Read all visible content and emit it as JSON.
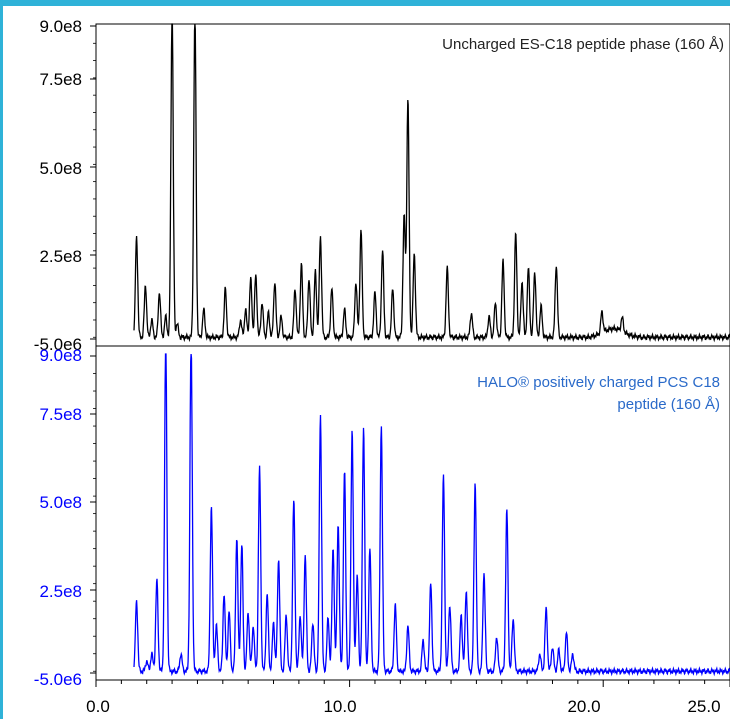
{
  "chart_data": [
    {
      "type": "line",
      "annotation_lines": [
        "Uncharged ES-C18 peptide phase (160 Å)"
      ],
      "yticks": [
        "9.0e8",
        "7.5e8",
        "5.0e8",
        "2.5e8",
        "-5.0e6"
      ],
      "ytick_values": [
        900000000,
        750000000,
        500000000,
        250000000,
        -5000000
      ],
      "ylim": [
        -5000000,
        900000000
      ],
      "xlim": [
        0,
        25
      ],
      "color": "#000000",
      "peaks": [
        [
          1.6,
          290000000.0
        ],
        [
          1.95,
          150000000.0
        ],
        [
          2.2,
          50000000.0
        ],
        [
          2.5,
          130000000.0
        ],
        [
          2.75,
          60000000.0
        ],
        [
          3.0,
          950000000.0
        ],
        [
          3.2,
          40000000.0
        ],
        [
          3.9,
          950000000.0
        ],
        [
          4.25,
          80000000.0
        ],
        [
          5.1,
          140000000.0
        ],
        [
          5.7,
          50000000.0
        ],
        [
          5.9,
          80000000.0
        ],
        [
          6.1,
          170000000.0
        ],
        [
          6.3,
          180000000.0
        ],
        [
          6.55,
          100000000.0
        ],
        [
          6.8,
          70000000.0
        ],
        [
          7.05,
          160000000.0
        ],
        [
          7.3,
          60000000.0
        ],
        [
          7.85,
          140000000.0
        ],
        [
          8.1,
          210000000.0
        ],
        [
          8.4,
          170000000.0
        ],
        [
          8.65,
          190000000.0
        ],
        [
          8.85,
          290000000.0
        ],
        [
          9.3,
          140000000.0
        ],
        [
          9.8,
          80000000.0
        ],
        [
          10.25,
          160000000.0
        ],
        [
          10.45,
          310000000.0
        ],
        [
          11.0,
          130000000.0
        ],
        [
          11.3,
          250000000.0
        ],
        [
          11.7,
          140000000.0
        ],
        [
          12.15,
          350000000.0
        ],
        [
          12.3,
          690000000.0
        ],
        [
          12.55,
          240000000.0
        ],
        [
          13.85,
          200000000.0
        ],
        [
          14.8,
          70000000.0
        ],
        [
          15.5,
          60000000.0
        ],
        [
          15.75,
          100000000.0
        ],
        [
          16.05,
          220000000.0
        ],
        [
          16.55,
          300000000.0
        ],
        [
          16.8,
          160000000.0
        ],
        [
          17.05,
          200000000.0
        ],
        [
          17.3,
          190000000.0
        ],
        [
          17.55,
          90000000.0
        ],
        [
          18.15,
          210000000.0
        ],
        [
          19.95,
          60000000.0
        ],
        [
          20.75,
          40000000.0
        ]
      ]
    },
    {
      "type": "line",
      "annotation_lines": [
        "HALO® positively charged PCS C18",
        "peptide (160 Å)"
      ],
      "yticks": [
        "9.0e8",
        "7.5e8",
        "5.0e8",
        "2.5e8",
        "-5.0e6"
      ],
      "ytick_values": [
        900000000,
        750000000,
        500000000,
        250000000,
        -5000000
      ],
      "ylim": [
        -5000000,
        900000000
      ],
      "xlim": [
        0,
        25
      ],
      "xticks": [
        "0.0",
        "10.0",
        "20.0",
        "25.0"
      ],
      "xtick_values": [
        0,
        10,
        20,
        25
      ],
      "color": "#0000ff",
      "peaks": [
        [
          1.6,
          200000000.0
        ],
        [
          2.0,
          30000000.0
        ],
        [
          2.2,
          50000000.0
        ],
        [
          2.4,
          260000000.0
        ],
        [
          2.75,
          950000000.0
        ],
        [
          3.35,
          50000000.0
        ],
        [
          3.75,
          950000000.0
        ],
        [
          4.55,
          470000000.0
        ],
        [
          4.75,
          130000000.0
        ],
        [
          5.05,
          220000000.0
        ],
        [
          5.25,
          170000000.0
        ],
        [
          5.55,
          380000000.0
        ],
        [
          5.75,
          360000000.0
        ],
        [
          6.0,
          170000000.0
        ],
        [
          6.2,
          130000000.0
        ],
        [
          6.45,
          580000000.0
        ],
        [
          6.75,
          220000000.0
        ],
        [
          7.0,
          140000000.0
        ],
        [
          7.2,
          320000000.0
        ],
        [
          7.5,
          160000000.0
        ],
        [
          7.8,
          490000000.0
        ],
        [
          8.05,
          160000000.0
        ],
        [
          8.25,
          330000000.0
        ],
        [
          8.55,
          140000000.0
        ],
        [
          8.85,
          730000000.0
        ],
        [
          9.15,
          150000000.0
        ],
        [
          9.35,
          350000000.0
        ],
        [
          9.55,
          420000000.0
        ],
        [
          9.8,
          570000000.0
        ],
        [
          10.1,
          690000000.0
        ],
        [
          10.3,
          270000000.0
        ],
        [
          10.55,
          700000000.0
        ],
        [
          10.8,
          350000000.0
        ],
        [
          11.25,
          700000000.0
        ],
        [
          11.8,
          190000000.0
        ],
        [
          12.3,
          130000000.0
        ],
        [
          12.9,
          90000000.0
        ],
        [
          13.2,
          250000000.0
        ],
        [
          13.7,
          560000000.0
        ],
        [
          13.95,
          190000000.0
        ],
        [
          14.4,
          160000000.0
        ],
        [
          14.6,
          230000000.0
        ],
        [
          14.95,
          540000000.0
        ],
        [
          15.3,
          280000000.0
        ],
        [
          15.8,
          100000000.0
        ],
        [
          16.2,
          460000000.0
        ],
        [
          16.45,
          150000000.0
        ],
        [
          17.5,
          50000000.0
        ],
        [
          17.75,
          180000000.0
        ],
        [
          18.0,
          70000000.0
        ],
        [
          18.25,
          60000000.0
        ],
        [
          18.55,
          110000000.0
        ],
        [
          18.8,
          50000000.0
        ]
      ]
    }
  ]
}
